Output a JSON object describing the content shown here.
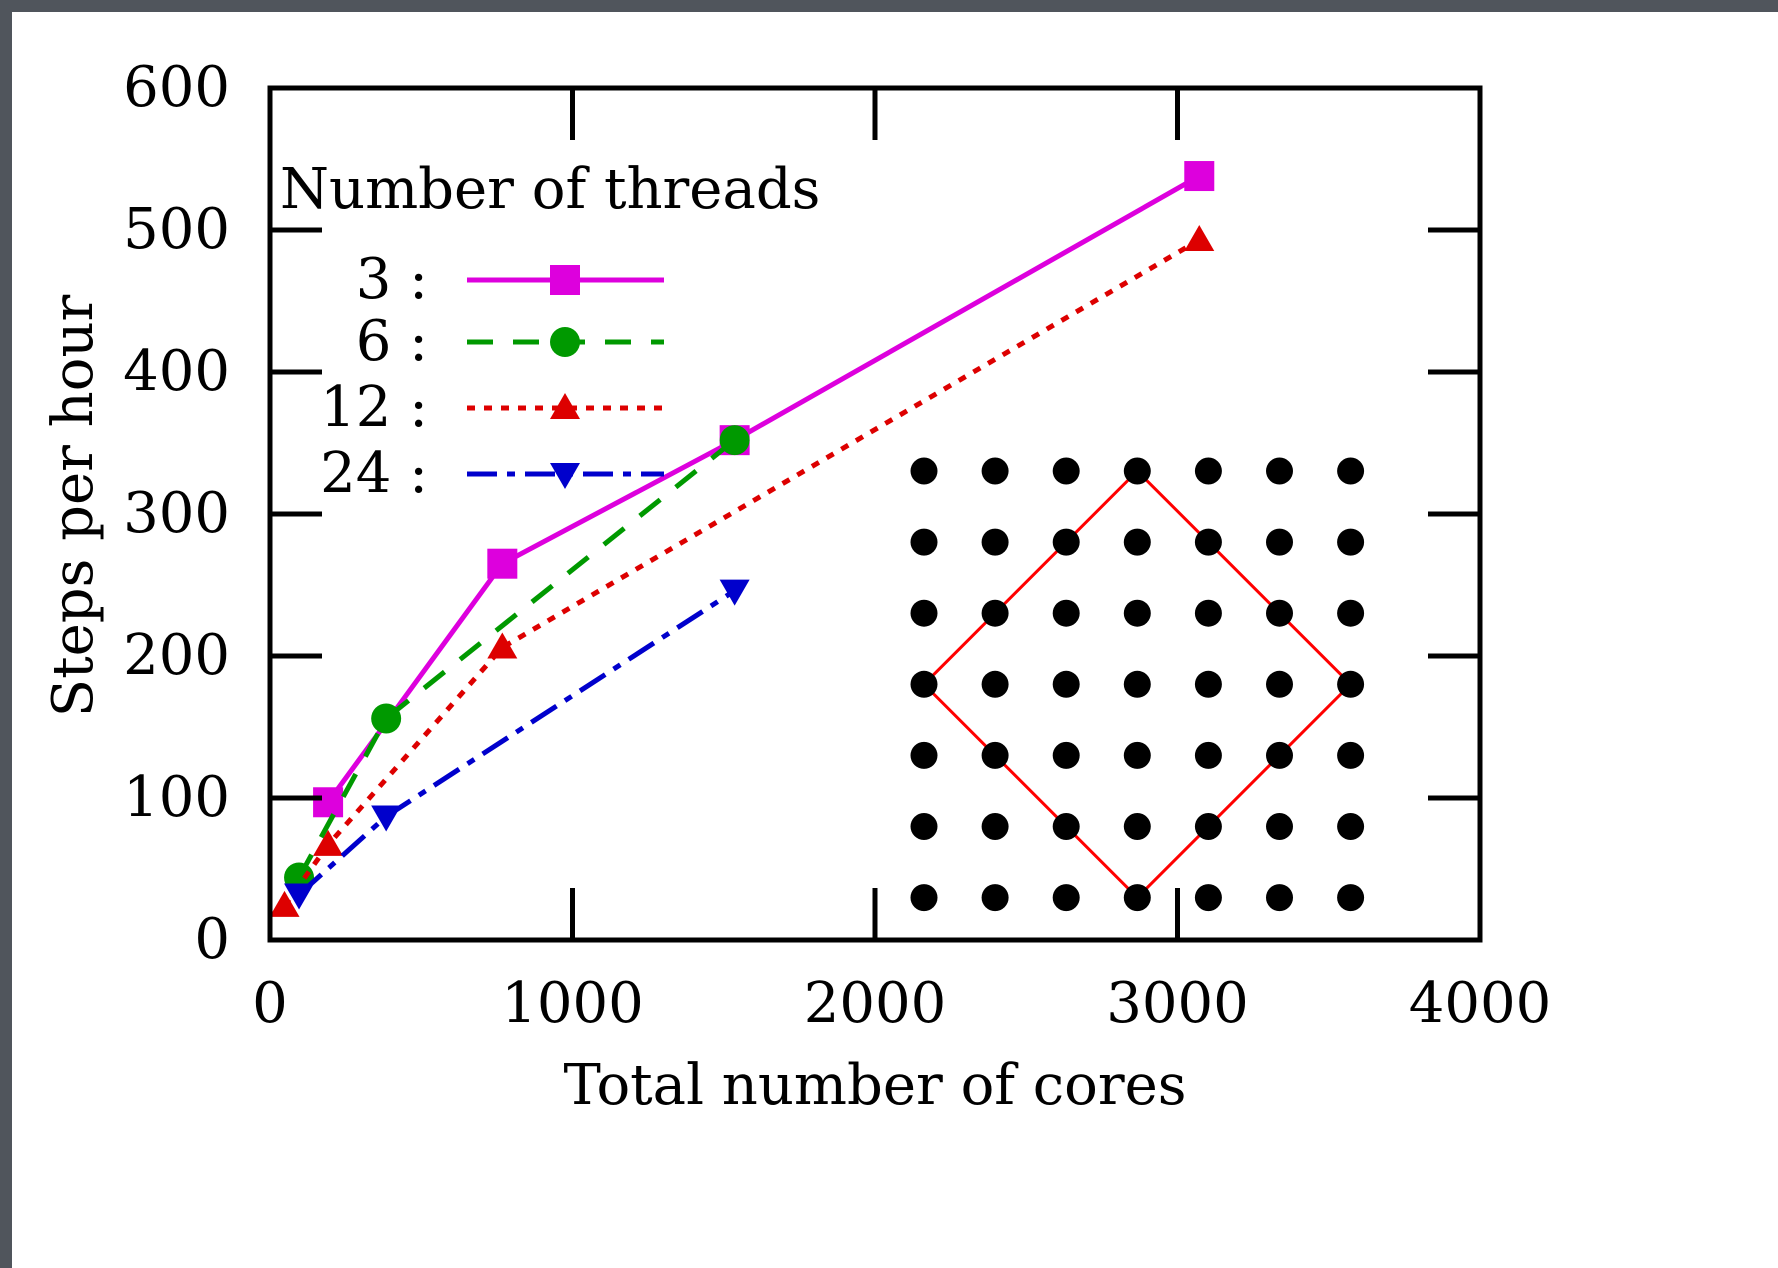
{
  "chart_data": {
    "type": "line",
    "xlabel": "Total number of cores",
    "ylabel": "Steps per hour",
    "xlim": [
      0,
      4000
    ],
    "ylim": [
      0,
      600
    ],
    "xticks": [
      "0",
      "1000",
      "2000",
      "3000",
      "4000"
    ],
    "yticks": [
      "0",
      "100",
      "200",
      "300",
      "400",
      "500",
      "600"
    ],
    "grid": false,
    "legend": {
      "title": "Number of threads",
      "placement": "top-left"
    },
    "series": [
      {
        "name": "3 :",
        "color": "#dd00dd",
        "marker": "square",
        "dash": "solid",
        "x": [
          192,
          768,
          1536,
          3072
        ],
        "y": [
          97,
          265,
          352,
          538
        ]
      },
      {
        "name": "6 :",
        "color": "#009900",
        "marker": "circle",
        "dash": "dashed",
        "x": [
          96,
          384,
          1536
        ],
        "y": [
          44,
          156,
          352
        ]
      },
      {
        "name": "12 :",
        "color": "#dd0000",
        "marker": "triangle-up",
        "dash": "dotted",
        "x": [
          48,
          192,
          768,
          3072
        ],
        "y": [
          24,
          67,
          206,
          493
        ]
      },
      {
        "name": "24 :",
        "color": "#0000cc",
        "marker": "triangle-down",
        "dash": "dashdot",
        "x": [
          96,
          384,
          1536
        ],
        "y": [
          32,
          87,
          246
        ]
      }
    ],
    "inset": {
      "description_type": "lattice",
      "dot_color": "#000000",
      "outline_color": "#ff0000",
      "rows": 7,
      "cols": 7,
      "diamond": [
        [
          3,
          0
        ],
        [
          6,
          3
        ],
        [
          3,
          6
        ],
        [
          0,
          3
        ]
      ]
    }
  }
}
